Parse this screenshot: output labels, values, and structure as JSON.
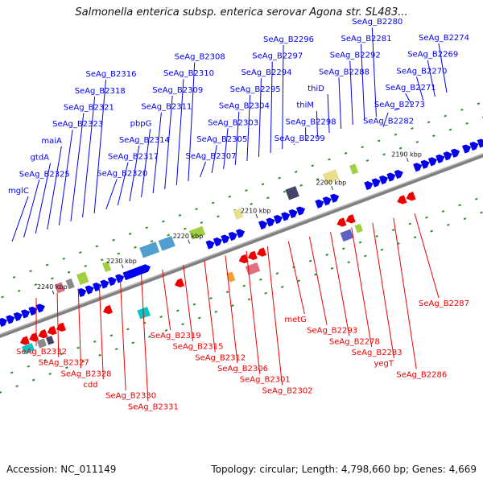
{
  "title": "Salmonella enterica subsp. enterica serovar Agona str. SL483...",
  "footer": {
    "accession": "Accession: NC_011149",
    "summary": "Topology: circular; Length: 4,798,660 bp; Genes: 4,669"
  },
  "colors": {
    "forward": "#0000ee",
    "reverse": "#ee0000",
    "backbone": "#808080",
    "tick": "#2e8b2e"
  },
  "scale_labels": [
    "2240 kbp",
    "2230 kbp",
    "2220 kbp",
    "2210 kbp",
    "2200 kbp",
    "2190 kbp"
  ],
  "genes_forward": [
    "mglC",
    "SeAg_B2325",
    "gtdA",
    "maiA",
    "SeAg_B2323",
    "SeAg_B2321",
    "SeAg_B2318",
    "SeAg_B2316",
    "SeAg_B2320",
    "SeAg_B2317",
    "SeAg_B2314",
    "pbpG",
    "SeAg_B2311",
    "SeAg_B2309",
    "SeAg_B2310",
    "SeAg_B2308",
    "SeAg_B2307",
    "SeAg_B2305",
    "SeAg_B2303",
    "SeAg_B2304",
    "SeAg_B2295",
    "SeAg_B2294",
    "SeAg_B2297",
    "SeAg_B2296",
    "SeAg_B2299",
    "SeAg_B2298",
    "thiM",
    "thiD",
    "SeAg_B2288",
    "SeAg_B2292",
    "SeAg_B2281",
    "SeAg_B2280",
    "SeAg_B2282",
    "SeAg_B2273",
    "SeAg_B2271",
    "SeAg_B2270",
    "SeAg_B2269",
    "SeAg_B2274"
  ],
  "genes_reverse": [
    "SeAg_B2332",
    "SeAg_B2327",
    "SeAg_B2328",
    "cdd",
    "SeAg_B2330",
    "SeAg_B2331",
    "SeAg_B2319",
    "SeAg_B2315",
    "SeAg_B2312",
    "SeAg_B2306",
    "SeAg_B2301",
    "SeAg_B2302",
    "metG",
    "SeAg_B2293",
    "SeAg_B2278",
    "SeAg_B2283",
    "yegT",
    "SeAg_B2286",
    "SeAg_B2287"
  ]
}
